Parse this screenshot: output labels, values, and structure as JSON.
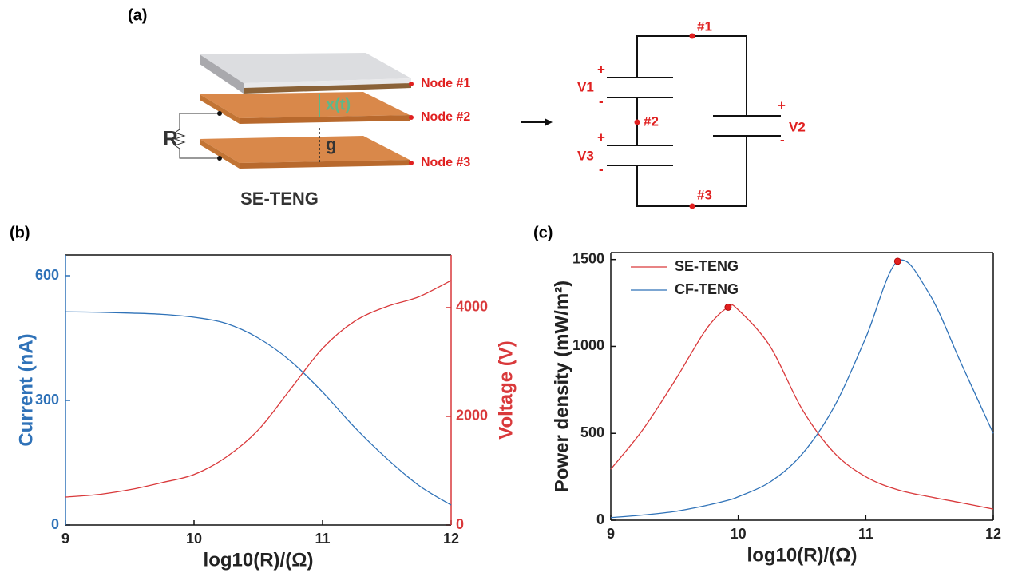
{
  "diagram": {
    "panel_label": "(a)",
    "device": {
      "node_labels": [
        "Node #1",
        "Node #2",
        "Node #3"
      ],
      "gap_label": "x(t)",
      "spacing_label": "g",
      "resistor_label": "R",
      "name": "SE-TENG"
    },
    "circuit": {
      "node_labels": [
        "#1",
        "#2",
        "#3"
      ],
      "capacitors": [
        "V1",
        "V2",
        "V3"
      ],
      "plus": "+",
      "minus": "-"
    }
  },
  "chart_data": [
    {
      "type": "line",
      "panel_label": "(b)",
      "x_label": "log10(R)/(Ω)",
      "y_label": "Current (nA)",
      "y2_label": "Voltage (V)",
      "x": [
        9,
        9.25,
        9.5,
        9.75,
        10,
        10.25,
        10.5,
        10.75,
        11,
        11.25,
        11.5,
        11.75,
        12
      ],
      "xlim": [
        9,
        12
      ],
      "xticks": [
        9,
        10,
        11,
        12
      ],
      "ylim": [
        0,
        650
      ],
      "yticks": [
        0,
        300,
        600
      ],
      "y2lim": [
        0,
        4970
      ],
      "y2ticks": [
        0,
        2000,
        4000
      ],
      "series": [
        {
          "color": "#2f72b8",
          "values": [
            513,
            512,
            510,
            507,
            500,
            485,
            450,
            395,
            320,
            235,
            160,
            95,
            48
          ]
        },
        {
          "color": "#d9393b",
          "axis": "y2",
          "values": [
            515,
            560,
            650,
            780,
            930,
            1250,
            1750,
            2500,
            3250,
            3750,
            4020,
            4200,
            4500
          ]
        }
      ]
    },
    {
      "type": "line",
      "panel_label": "(c)",
      "x_label": "log10(R)/(Ω)",
      "y_label": "Power density (mW/m²)",
      "x": [
        9,
        9.25,
        9.5,
        9.75,
        9.92,
        10,
        10.25,
        10.5,
        10.75,
        11,
        11.25,
        11.5,
        11.75,
        12
      ],
      "xlim": [
        9,
        12
      ],
      "xticks": [
        9,
        10,
        11,
        12
      ],
      "ylim": [
        0,
        1540
      ],
      "yticks": [
        0,
        500,
        1000,
        1500
      ],
      "legend": "upper left",
      "series": [
        {
          "name": "SE-TENG",
          "color": "#d9393b",
          "values": [
            294,
            520,
            800,
            1100,
            1225,
            1210,
            1000,
            640,
            390,
            250,
            175,
            135,
            100,
            64
          ],
          "peak_x": 9.92,
          "peak_y": 1225
        },
        {
          "name": "CF-TENG",
          "color": "#2f72b8",
          "values": [
            15,
            30,
            50,
            85,
            115,
            135,
            220,
            380,
            650,
            1050,
            1490,
            1300,
            900,
            500
          ],
          "peak_x": 11.25,
          "peak_y": 1490
        }
      ]
    }
  ]
}
